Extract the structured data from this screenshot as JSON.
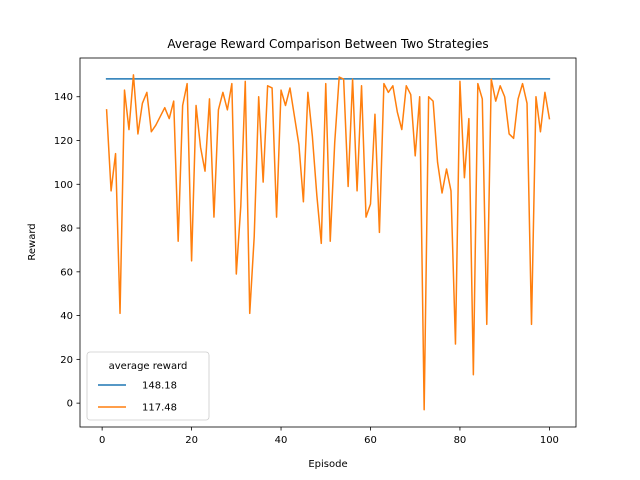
{
  "chart_data": {
    "type": "line",
    "title": "Average Reward Comparison Between Two Strategies",
    "xlabel": "Episode",
    "ylabel": "Reward",
    "xlim": [
      -4.95,
      105.95
    ],
    "ylim": [
      -10.9,
      157.7
    ],
    "xticks": [
      0,
      20,
      40,
      60,
      80,
      100
    ],
    "yticks": [
      0,
      20,
      40,
      60,
      80,
      100,
      120,
      140
    ],
    "grid": false,
    "legend": {
      "title": "average reward",
      "placement": "lower-left"
    },
    "series": [
      {
        "name": "148.18",
        "color": "#1f77b4",
        "x": [
          1,
          100
        ],
        "y": [
          148.18,
          148.18
        ]
      },
      {
        "name": "117.48",
        "color": "#ff7f0e",
        "x": [
          1,
          2,
          3,
          4,
          5,
          6,
          7,
          8,
          9,
          10,
          11,
          12,
          13,
          14,
          15,
          16,
          17,
          18,
          19,
          20,
          21,
          22,
          23,
          24,
          25,
          26,
          27,
          28,
          29,
          30,
          31,
          32,
          33,
          34,
          35,
          36,
          37,
          38,
          39,
          40,
          41,
          42,
          43,
          44,
          45,
          46,
          47,
          48,
          49,
          50,
          51,
          52,
          53,
          54,
          55,
          56,
          57,
          58,
          59,
          60,
          61,
          62,
          63,
          64,
          65,
          66,
          67,
          68,
          69,
          70,
          71,
          72,
          73,
          74,
          75,
          76,
          77,
          78,
          79,
          80,
          81,
          82,
          83,
          84,
          85,
          86,
          87,
          88,
          89,
          90,
          91,
          92,
          93,
          94,
          95,
          96,
          97,
          98,
          99,
          100
        ],
        "y": [
          134,
          97,
          114,
          41,
          143,
          125,
          150,
          123,
          137,
          142,
          124,
          127,
          131,
          135,
          130,
          138,
          74,
          136,
          146,
          65,
          136,
          117,
          106,
          139,
          85,
          134,
          142,
          134,
          146,
          59,
          90,
          147,
          41,
          76,
          140,
          101,
          145,
          144,
          85,
          143,
          136,
          144,
          131,
          118,
          92,
          142,
          122,
          95,
          73,
          146,
          74,
          119,
          149,
          148,
          99,
          148,
          97,
          145,
          85,
          91,
          132,
          78,
          146,
          142,
          145,
          133,
          125,
          145,
          141,
          113,
          140,
          -3,
          140,
          138,
          110,
          96,
          107,
          97,
          27,
          147,
          103,
          130,
          13,
          146,
          139,
          36,
          148,
          138,
          145,
          140,
          123,
          121,
          139,
          146,
          137,
          36,
          140,
          124,
          142,
          130
        ]
      }
    ]
  }
}
